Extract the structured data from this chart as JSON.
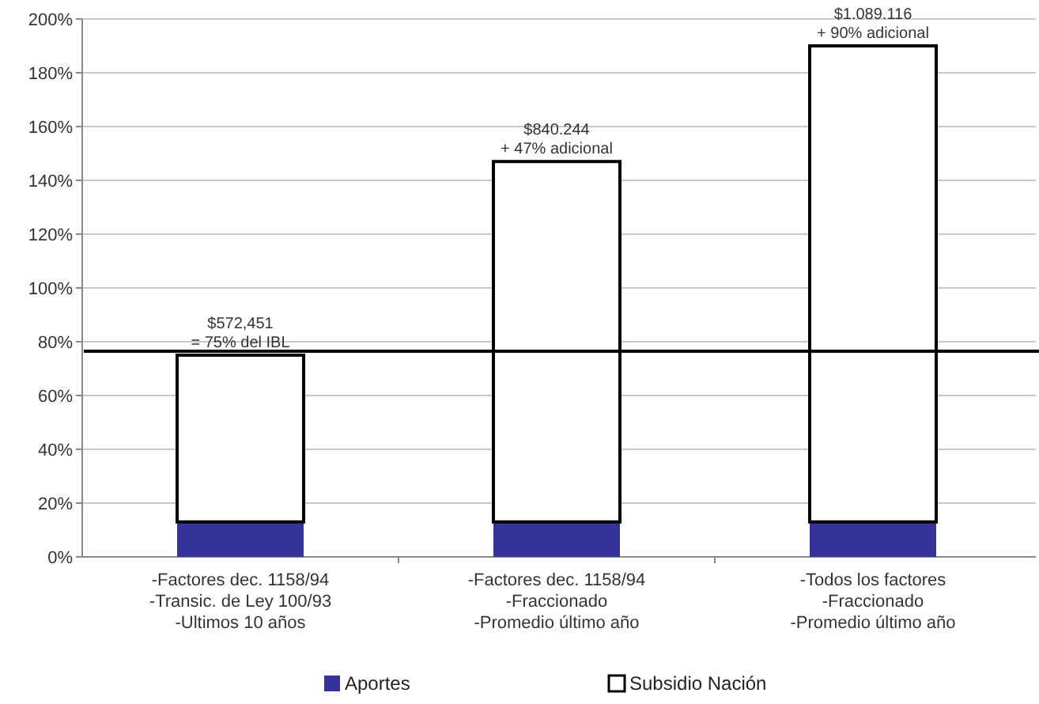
{
  "chart_data": {
    "type": "bar",
    "stacked": true,
    "categories": [
      "-Factores dec. 1158/94\n-Transic. de Ley 100/93\n-Ultimos 10 años",
      "-Factores dec. 1158/94\n-Fraccionado\n-Promedio último año",
      "-Todos los factores\n-Fraccionado\n-Promedio último año"
    ],
    "series": [
      {
        "name": "Aportes",
        "color": "#333399",
        "values": [
          13,
          13,
          13
        ]
      },
      {
        "name": "Subsidio Nación",
        "color": "#ffffff",
        "values": [
          62,
          134,
          177
        ]
      }
    ],
    "ylim": [
      0,
      200
    ],
    "yticks": [
      {
        "value": 0,
        "label": "0%"
      },
      {
        "value": 20,
        "label": "20%"
      },
      {
        "value": 40,
        "label": "40%"
      },
      {
        "value": 60,
        "label": "60%"
      },
      {
        "value": 80,
        "label": "80%"
      },
      {
        "value": 100,
        "label": "100%"
      },
      {
        "value": 120,
        "label": "120%"
      },
      {
        "value": 140,
        "label": "140%"
      },
      {
        "value": 160,
        "label": "160%"
      },
      {
        "value": 180,
        "label": "180%"
      },
      {
        "value": 200,
        "label": "200%"
      }
    ],
    "grid": "y",
    "legend": "bottom",
    "ref_lines": [
      {
        "axis": "y",
        "value": 76.5,
        "color": "#000000"
      }
    ],
    "annotations": [
      {
        "text": "$572,451\n= 75% del IBL",
        "x": "-Factores dec. 1158/94\n-Transic. de Ley 100/93\n-Ultimos 10 años",
        "y": 75
      },
      {
        "text": "$840.244\n+ 47% adicional",
        "x": "-Factores dec. 1158/94\n-Fraccionado\n-Promedio último año",
        "y": 147
      },
      {
        "text": "$1.089.116\n+ 90% adicional",
        "x": "-Todos los factores\n-Fraccionado\n-Promedio último año",
        "y": 190
      }
    ]
  }
}
